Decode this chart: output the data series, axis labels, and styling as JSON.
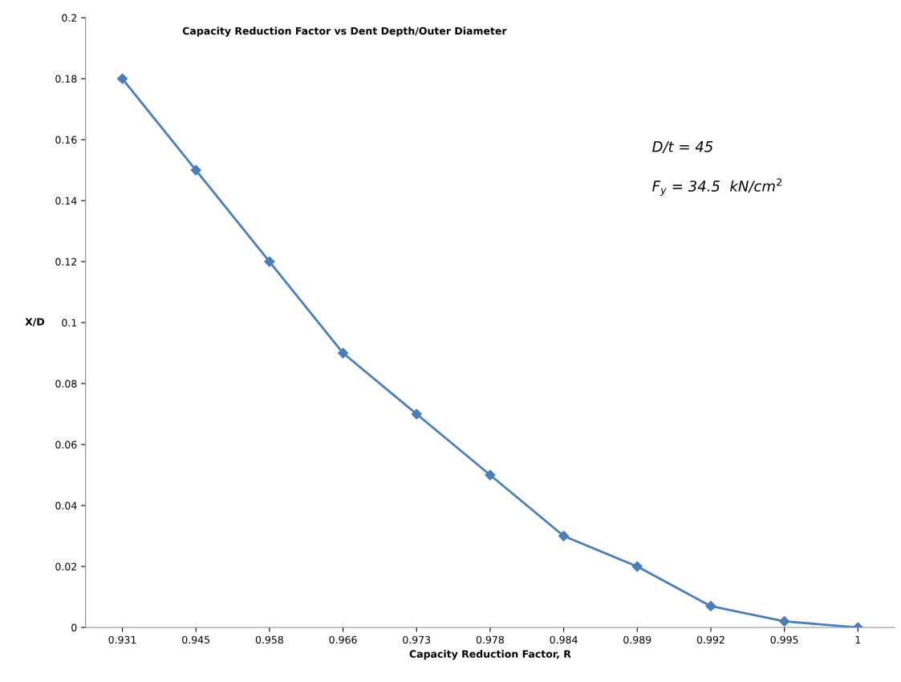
{
  "chart_data": {
    "type": "line",
    "title": "Capacity Reduction Factor vs Dent Depth/Outer Diameter",
    "xlabel": "Capacity Reduction Factor, R",
    "ylabel": "X/D",
    "categories": [
      "0.931",
      "0.945",
      "0.958",
      "0.966",
      "0.973",
      "0.978",
      "0.984",
      "0.989",
      "0.992",
      "0.995",
      "1"
    ],
    "series": [
      {
        "color": "#4a7ebb",
        "values": [
          0.18,
          0.15,
          0.12,
          0.09,
          0.07,
          0.05,
          0.03,
          0.02,
          0.007,
          0.002,
          0
        ]
      }
    ],
    "ylim": [
      0,
      0.2
    ],
    "yticks": [
      0,
      0.02,
      0.04,
      0.06,
      0.08,
      0.1,
      0.12,
      0.14,
      0.16,
      0.18,
      0.2
    ],
    "annotations": [
      "D/t = 45",
      "F$_{y}$ = 34.5  kN/cm$^{2}$"
    ],
    "marker": "diamond",
    "line_style": "solid",
    "grid": false,
    "legend": false
  }
}
